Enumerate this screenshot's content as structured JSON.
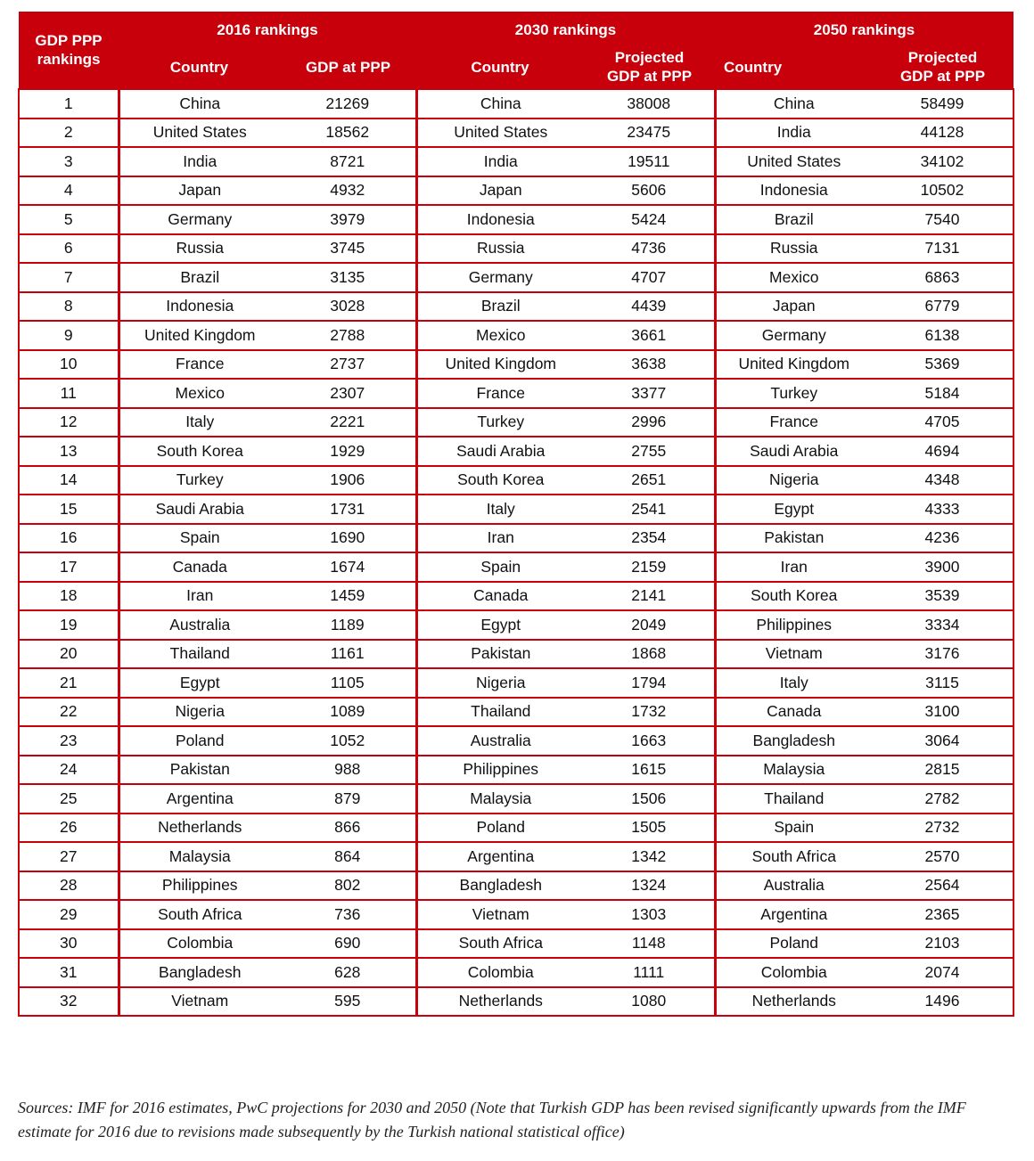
{
  "header": {
    "rank_label": "GDP PPP rankings",
    "groups": [
      "2016 rankings",
      "2030 rankings",
      "2050 rankings"
    ],
    "sub_2016_country": "Country",
    "sub_2016_gdp": "GDP at PPP",
    "sub_2030_country": "Country",
    "sub_2030_gdp": "Projected GDP at PPP",
    "sub_2050_country": "Country",
    "sub_2050_gdp": "Projected GDP at PPP"
  },
  "rows": [
    {
      "rank": "1",
      "c2016": "China",
      "g2016": "21269",
      "c2030": "China",
      "g2030": "38008",
      "c2050": "China",
      "g2050": "58499"
    },
    {
      "rank": "2",
      "c2016": "United States",
      "g2016": "18562",
      "c2030": "United States",
      "g2030": "23475",
      "c2050": "India",
      "g2050": "44128"
    },
    {
      "rank": "3",
      "c2016": "India",
      "g2016": "8721",
      "c2030": "India",
      "g2030": "19511",
      "c2050": "United States",
      "g2050": "34102"
    },
    {
      "rank": "4",
      "c2016": "Japan",
      "g2016": "4932",
      "c2030": "Japan",
      "g2030": "5606",
      "c2050": "Indonesia",
      "g2050": "10502"
    },
    {
      "rank": "5",
      "c2016": "Germany",
      "g2016": "3979",
      "c2030": "Indonesia",
      "g2030": "5424",
      "c2050": "Brazil",
      "g2050": "7540"
    },
    {
      "rank": "6",
      "c2016": "Russia",
      "g2016": "3745",
      "c2030": "Russia",
      "g2030": "4736",
      "c2050": "Russia",
      "g2050": "7131"
    },
    {
      "rank": "7",
      "c2016": "Brazil",
      "g2016": "3135",
      "c2030": "Germany",
      "g2030": "4707",
      "c2050": "Mexico",
      "g2050": "6863"
    },
    {
      "rank": "8",
      "c2016": "Indonesia",
      "g2016": "3028",
      "c2030": "Brazil",
      "g2030": "4439",
      "c2050": "Japan",
      "g2050": "6779"
    },
    {
      "rank": "9",
      "c2016": "United Kingdom",
      "g2016": "2788",
      "c2030": "Mexico",
      "g2030": "3661",
      "c2050": "Germany",
      "g2050": "6138"
    },
    {
      "rank": "10",
      "c2016": "France",
      "g2016": "2737",
      "c2030": "United Kingdom",
      "g2030": "3638",
      "c2050": "United Kingdom",
      "g2050": "5369"
    },
    {
      "rank": "11",
      "c2016": "Mexico",
      "g2016": "2307",
      "c2030": "France",
      "g2030": "3377",
      "c2050": "Turkey",
      "g2050": "5184"
    },
    {
      "rank": "12",
      "c2016": "Italy",
      "g2016": "2221",
      "c2030": "Turkey",
      "g2030": "2996",
      "c2050": "France",
      "g2050": "4705"
    },
    {
      "rank": "13",
      "c2016": "South Korea",
      "g2016": "1929",
      "c2030": "Saudi Arabia",
      "g2030": "2755",
      "c2050": "Saudi Arabia",
      "g2050": "4694"
    },
    {
      "rank": "14",
      "c2016": "Turkey",
      "g2016": "1906",
      "c2030": "South Korea",
      "g2030": "2651",
      "c2050": "Nigeria",
      "g2050": "4348"
    },
    {
      "rank": "15",
      "c2016": "Saudi Arabia",
      "g2016": "1731",
      "c2030": "Italy",
      "g2030": "2541",
      "c2050": "Egypt",
      "g2050": "4333"
    },
    {
      "rank": "16",
      "c2016": "Spain",
      "g2016": "1690",
      "c2030": "Iran",
      "g2030": "2354",
      "c2050": "Pakistan",
      "g2050": "4236"
    },
    {
      "rank": "17",
      "c2016": "Canada",
      "g2016": "1674",
      "c2030": "Spain",
      "g2030": "2159",
      "c2050": "Iran",
      "g2050": "3900"
    },
    {
      "rank": "18",
      "c2016": "Iran",
      "g2016": "1459",
      "c2030": "Canada",
      "g2030": "2141",
      "c2050": "South Korea",
      "g2050": "3539"
    },
    {
      "rank": "19",
      "c2016": "Australia",
      "g2016": "1189",
      "c2030": "Egypt",
      "g2030": "2049",
      "c2050": "Philippines",
      "g2050": "3334"
    },
    {
      "rank": "20",
      "c2016": "Thailand",
      "g2016": "1161",
      "c2030": "Pakistan",
      "g2030": "1868",
      "c2050": "Vietnam",
      "g2050": "3176"
    },
    {
      "rank": "21",
      "c2016": "Egypt",
      "g2016": "1105",
      "c2030": "Nigeria",
      "g2030": "1794",
      "c2050": "Italy",
      "g2050": "3115"
    },
    {
      "rank": "22",
      "c2016": "Nigeria",
      "g2016": "1089",
      "c2030": "Thailand",
      "g2030": "1732",
      "c2050": "Canada",
      "g2050": "3100"
    },
    {
      "rank": "23",
      "c2016": "Poland",
      "g2016": "1052",
      "c2030": "Australia",
      "g2030": "1663",
      "c2050": "Bangladesh",
      "g2050": "3064"
    },
    {
      "rank": "24",
      "c2016": "Pakistan",
      "g2016": "988",
      "c2030": "Philippines",
      "g2030": "1615",
      "c2050": "Malaysia",
      "g2050": "2815"
    },
    {
      "rank": "25",
      "c2016": "Argentina",
      "g2016": "879",
      "c2030": "Malaysia",
      "g2030": "1506",
      "c2050": "Thailand",
      "g2050": "2782"
    },
    {
      "rank": "26",
      "c2016": "Netherlands",
      "g2016": "866",
      "c2030": "Poland",
      "g2030": "1505",
      "c2050": "Spain",
      "g2050": "2732"
    },
    {
      "rank": "27",
      "c2016": "Malaysia",
      "g2016": "864",
      "c2030": "Argentina",
      "g2030": "1342",
      "c2050": "South Africa",
      "g2050": "2570"
    },
    {
      "rank": "28",
      "c2016": "Philippines",
      "g2016": "802",
      "c2030": "Bangladesh",
      "g2030": "1324",
      "c2050": "Australia",
      "g2050": "2564"
    },
    {
      "rank": "29",
      "c2016": "South Africa",
      "g2016": "736",
      "c2030": "Vietnam",
      "g2030": "1303",
      "c2050": "Argentina",
      "g2050": "2365"
    },
    {
      "rank": "30",
      "c2016": "Colombia",
      "g2016": "690",
      "c2030": "South Africa",
      "g2030": "1148",
      "c2050": "Poland",
      "g2050": "2103"
    },
    {
      "rank": "31",
      "c2016": "Bangladesh",
      "g2016": "628",
      "c2030": "Colombia",
      "g2030": "1111",
      "c2050": "Colombia",
      "g2050": "2074"
    },
    {
      "rank": "32",
      "c2016": "Vietnam",
      "g2016": "595",
      "c2030": "Netherlands",
      "g2030": "1080",
      "c2050": "Netherlands",
      "g2050": "1496"
    }
  ],
  "sources": "Sources: IMF for 2016 estimates, PwC projections for 2030 and 2050 (Note that Turkish GDP has been revised significantly upwards from the IMF estimate for 2016 due to revisions made subsequently by the Turkish national statistical office)",
  "colors": {
    "header_bg": "#c8000b",
    "border": "#c8000b"
  }
}
